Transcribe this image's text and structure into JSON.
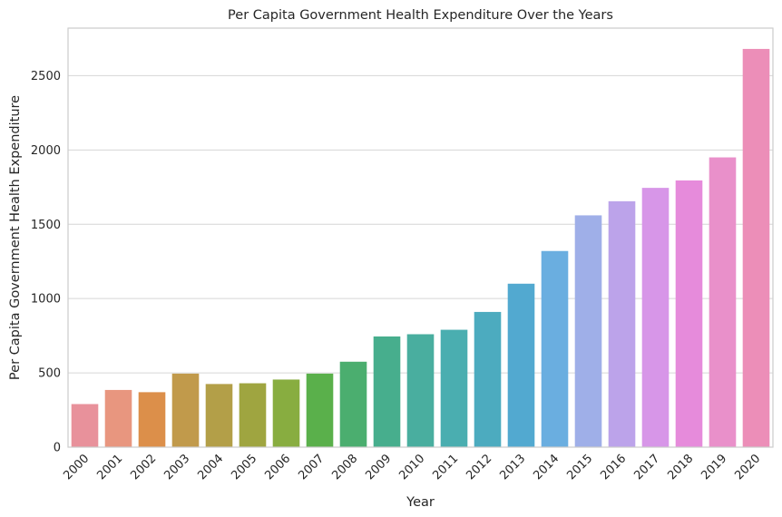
{
  "chart_data": {
    "type": "bar",
    "title": "Per Capita Government Health Expenditure Over the Years",
    "xlabel": "Year",
    "ylabel": "Per Capita Government Health Expenditure",
    "ylim": [
      0,
      2820
    ],
    "yticks": [
      0,
      500,
      1000,
      1500,
      2000,
      2500
    ],
    "grid": true,
    "categories": [
      "2000",
      "2001",
      "2002",
      "2003",
      "2004",
      "2005",
      "2006",
      "2007",
      "2008",
      "2009",
      "2010",
      "2011",
      "2012",
      "2013",
      "2014",
      "2015",
      "2016",
      "2017",
      "2018",
      "2019",
      "2020"
    ],
    "values": [
      290,
      385,
      370,
      495,
      425,
      430,
      455,
      495,
      575,
      745,
      760,
      790,
      910,
      1100,
      1320,
      1560,
      1655,
      1745,
      1795,
      1950,
      2680
    ],
    "colors": [
      "#e8919b",
      "#e8967f",
      "#dc8f4a",
      "#c19a4b",
      "#b39f48",
      "#9fa540",
      "#88ad40",
      "#5ab04b",
      "#4bae6f",
      "#47ae8d",
      "#49ae9f",
      "#4aaeb0",
      "#4cabbf",
      "#52a9d0",
      "#6aaee0",
      "#9fafe8",
      "#bca3ea",
      "#d796e8",
      "#e68bdb",
      "#e990ca",
      "#ec8eb8"
    ]
  }
}
